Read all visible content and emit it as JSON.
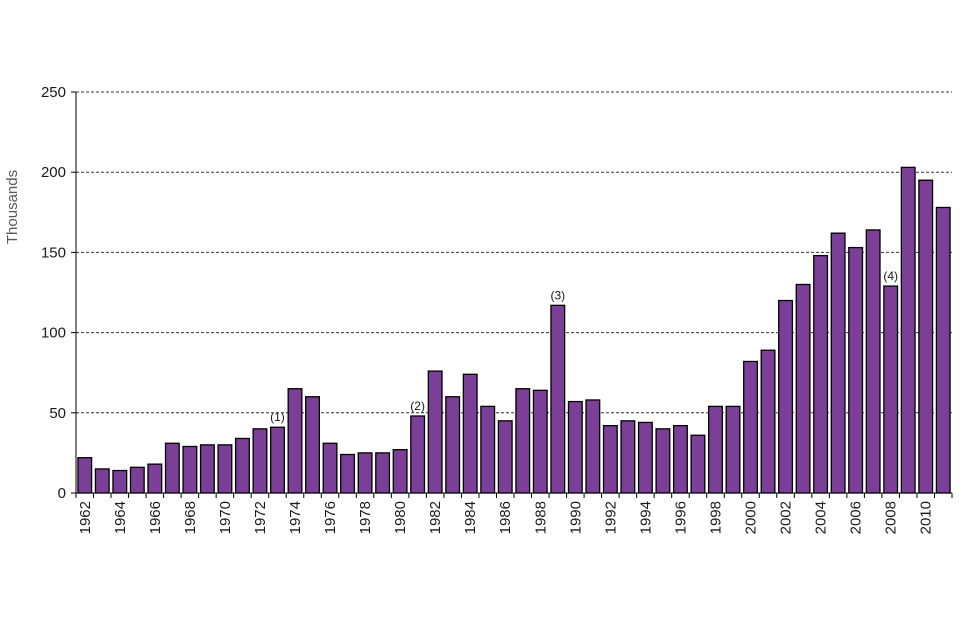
{
  "chart_data": {
    "type": "bar",
    "ylabel": "Thousands",
    "xlabel": "",
    "ylim": [
      0,
      250
    ],
    "yticks": [
      "0",
      "50",
      "100",
      "150",
      "200",
      "250"
    ],
    "grid": true,
    "bar_color": "#7b3f98",
    "categories": [
      "1962",
      "1963",
      "1964",
      "1965",
      "1966",
      "1967",
      "1968",
      "1969",
      "1970",
      "1971",
      "1972",
      "1973",
      "1974",
      "1975",
      "1976",
      "1977",
      "1978",
      "1979",
      "1980",
      "1981",
      "1982",
      "1983",
      "1984",
      "1985",
      "1986",
      "1987",
      "1988",
      "1989",
      "1990",
      "1991",
      "1992",
      "1993",
      "1994",
      "1995",
      "1996",
      "1997",
      "1998",
      "1999",
      "2000",
      "2001",
      "2002",
      "2003",
      "2004",
      "2005",
      "2006",
      "2007",
      "2008",
      "2009",
      "2010",
      "2011"
    ],
    "tick_labels": [
      "1962",
      "",
      "1964",
      "",
      "1966",
      "",
      "1968",
      "",
      "1970",
      "",
      "1972",
      "",
      "1974",
      "",
      "1976",
      "",
      "1978",
      "",
      "1980",
      "",
      "1982",
      "",
      "1984",
      "",
      "1986",
      "",
      "1988",
      "",
      "1990",
      "",
      "1992",
      "",
      "1994",
      "",
      "1996",
      "",
      "1998",
      "",
      "2000",
      "",
      "2002",
      "",
      "2004",
      "",
      "2006",
      "",
      "2008",
      "",
      "2010",
      ""
    ],
    "values": [
      22,
      15,
      14,
      16,
      18,
      31,
      29,
      30,
      30,
      34,
      40,
      41,
      65,
      60,
      31,
      24,
      25,
      25,
      27,
      48,
      76,
      60,
      74,
      54,
      45,
      65,
      64,
      117,
      57,
      58,
      42,
      45,
      44,
      40,
      42,
      36,
      54,
      54,
      82,
      89,
      120,
      130,
      148,
      162,
      153,
      164,
      129,
      203,
      195,
      178
    ],
    "annotations": [
      {
        "text": "(1)",
        "category": "1973"
      },
      {
        "text": "(2)",
        "category": "1981"
      },
      {
        "text": "(3)",
        "category": "1989"
      },
      {
        "text": "(4)",
        "category": "2008"
      }
    ]
  }
}
